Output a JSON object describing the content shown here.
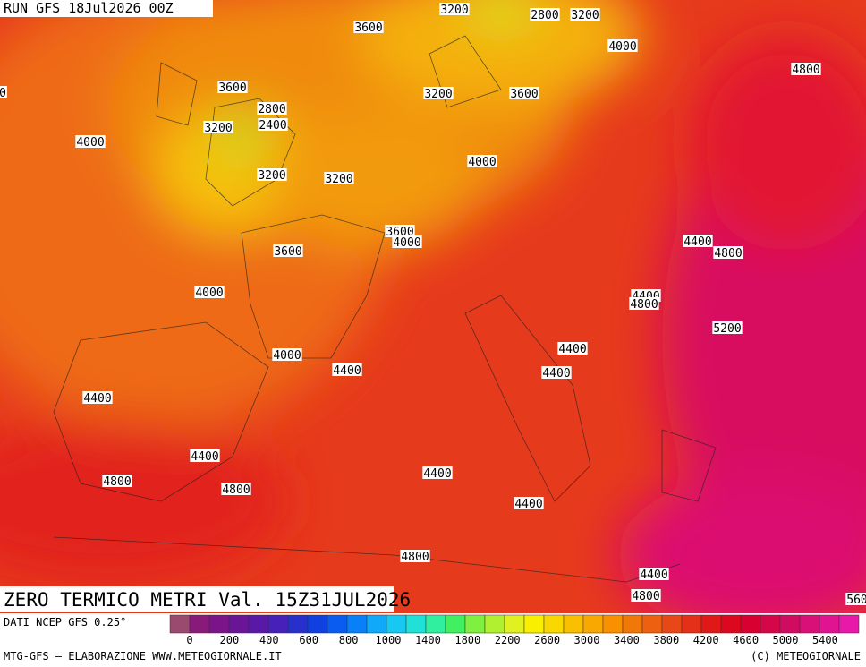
{
  "header": {
    "run": "RUN GFS 18Jul2026 00Z"
  },
  "map": {
    "contour_labels": [
      "3200",
      "2800",
      "3200",
      "3600",
      "4000",
      "4800",
      "3600",
      "3200",
      "3600",
      "2800",
      "2400",
      "3200",
      "4000",
      "4000",
      "3200",
      "3200",
      "3600",
      "4000",
      "4400",
      "4800",
      "3600",
      "4000",
      "4400",
      "4800",
      "5200",
      "4400",
      "4000",
      "4400",
      "4400",
      "4400",
      "4400",
      "4400",
      "4800",
      "4800",
      "4400",
      "4800",
      "4400",
      "4800",
      "0",
      "560"
    ]
  },
  "footer": {
    "title": "ZERO TERMICO METRI Val. 15Z31JUL2026",
    "source": "DATI NCEP GFS 0.25°",
    "credit": "MTG-GFS — ELABORAZIONE WWW.METEOGIORNALE.IT",
    "copyright": "(C) METEOGIORNALE"
  },
  "colorbar": {
    "labels": [
      "0",
      "200",
      "400",
      "600",
      "800",
      "1000",
      "1400",
      "1800",
      "2200",
      "2600",
      "3000",
      "3400",
      "3800",
      "4200",
      "4600",
      "5000",
      "5400"
    ],
    "colors": [
      "#9a4a6e",
      "#8a1a7a",
      "#7a1488",
      "#6a1496",
      "#5a18a6",
      "#4620b8",
      "#2830cc",
      "#1040e0",
      "#0a5cf0",
      "#0880f8",
      "#10a8f8",
      "#18c8f0",
      "#20e0d8",
      "#30f0a0",
      "#40f060",
      "#80f040",
      "#b0f030",
      "#e0f020",
      "#f8f000",
      "#f8d800",
      "#f8c000",
      "#f8a800",
      "#f89000",
      "#f07808",
      "#ec6010",
      "#e84818",
      "#e43018",
      "#e01818",
      "#dc0820",
      "#d80030",
      "#d40848",
      "#d00c60",
      "#d81078",
      "#e01490",
      "#e818a8"
    ]
  }
}
